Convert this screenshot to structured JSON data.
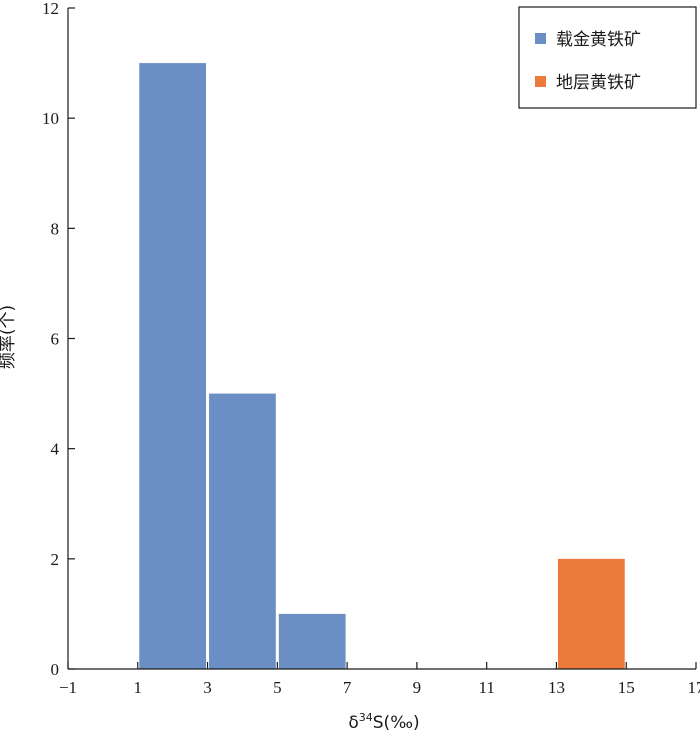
{
  "chart_data": {
    "type": "bar",
    "ylabel": "频率(个)",
    "xlabel_main": "δ",
    "xlabel_sup": "34",
    "xlabel_rest": "S(‰)",
    "xlim": [
      -1,
      17
    ],
    "ylim": [
      0,
      12
    ],
    "xticks": [
      -1,
      1,
      3,
      5,
      7,
      9,
      11,
      13,
      15,
      17
    ],
    "xtick_labels": [
      "−1",
      "1",
      "3",
      "5",
      "7",
      "9",
      "11",
      "13",
      "15",
      "17"
    ],
    "yticks": [
      0,
      2,
      4,
      6,
      8,
      10,
      12
    ],
    "ytick_labels": [
      "0",
      "2",
      "4",
      "6",
      "8",
      "10",
      "12"
    ],
    "grid": false,
    "legend_position": "top-right",
    "series": [
      {
        "name": "载金黄铁矿",
        "color": "#6b8fc4",
        "bins": [
          {
            "x0": 1,
            "x1": 3,
            "value": 11
          },
          {
            "x0": 3,
            "x1": 5,
            "value": 5
          },
          {
            "x0": 5,
            "x1": 7,
            "value": 1
          }
        ]
      },
      {
        "name": "地层黄铁矿",
        "color": "#ed7a3d",
        "bins": [
          {
            "x0": 13,
            "x1": 15,
            "value": 2
          }
        ]
      }
    ]
  }
}
